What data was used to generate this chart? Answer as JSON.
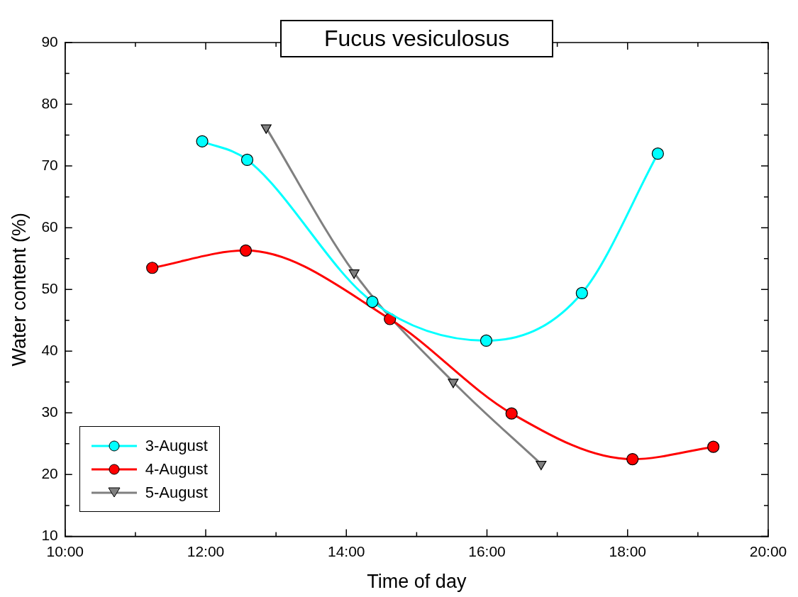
{
  "chart_data": {
    "type": "line",
    "title": "Fucus vesiculosus",
    "xlabel": "Time of day",
    "ylabel": "Water content (%)",
    "xlim": [
      10,
      20
    ],
    "xticks": [
      {
        "value": 10,
        "label": "10:00"
      },
      {
        "value": 11,
        "label": null
      },
      {
        "value": 12,
        "label": "12:00"
      },
      {
        "value": 13,
        "label": null
      },
      {
        "value": 14,
        "label": "14:00"
      },
      {
        "value": 15,
        "label": null
      },
      {
        "value": 16,
        "label": "16:00"
      },
      {
        "value": 17,
        "label": null
      },
      {
        "value": 18,
        "label": "18:00"
      },
      {
        "value": 19,
        "label": null
      },
      {
        "value": 20,
        "label": "20:00"
      }
    ],
    "ylim": [
      10,
      90
    ],
    "yticks": [
      10,
      {
        "value": 15,
        "label": null
      },
      20,
      {
        "value": 25,
        "label": null
      },
      30,
      {
        "value": 35,
        "label": null
      },
      40,
      {
        "value": 45,
        "label": null
      },
      50,
      {
        "value": 55,
        "label": null
      },
      60,
      {
        "value": 65,
        "label": null
      },
      70,
      {
        "value": 75,
        "label": null
      },
      80,
      {
        "value": 85,
        "label": null
      },
      90
    ],
    "grid": false,
    "legend": "bottom left",
    "series": [
      {
        "name": "3-August",
        "color": "#00ffff",
        "marker": "circle",
        "x": [
          11.95,
          12.59,
          14.37,
          15.99,
          17.35,
          18.43
        ],
        "values": [
          74,
          71,
          48,
          41.7,
          49.4,
          72
        ]
      },
      {
        "name": "4-August",
        "color": "#ff0000",
        "marker": "circle",
        "x": [
          11.24,
          12.57,
          14.62,
          16.35,
          18.07,
          19.22
        ],
        "values": [
          53.5,
          56.3,
          45.2,
          29.9,
          22.5,
          24.5
        ]
      },
      {
        "name": "5-August",
        "color": "#808080",
        "marker": "triangle",
        "x": [
          12.86,
          14.11,
          15.52,
          16.77
        ],
        "values": [
          76.2,
          52.7,
          35,
          21.7
        ]
      }
    ]
  }
}
